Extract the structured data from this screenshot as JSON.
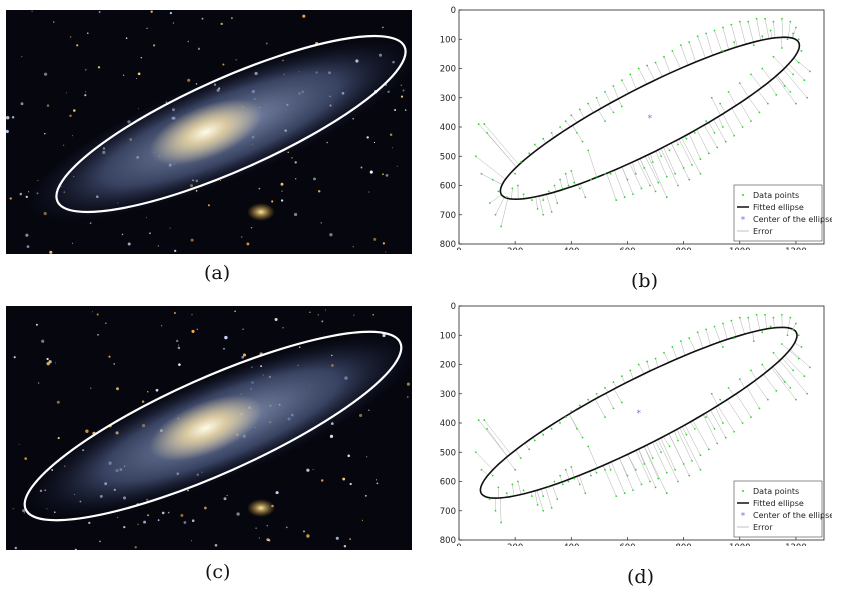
{
  "captions": {
    "a": "(a)",
    "b": "(b)",
    "c": "(c)",
    "d": "(d)"
  },
  "colors": {
    "points": "#2fd62f",
    "ellipse": "#111111",
    "center": "#7b6fe0",
    "error": "#b0b0b0",
    "overlay_ellipse": "#ffffff"
  },
  "chart_data": [
    {
      "panel": "b",
      "type": "scatter",
      "xlim": [
        0,
        1300
      ],
      "ylim": [
        800,
        0
      ],
      "xticks": [
        0,
        200,
        400,
        600,
        800,
        1000,
        1200
      ],
      "yticks": [
        0,
        100,
        200,
        300,
        400,
        500,
        600,
        700,
        800
      ],
      "grid": false,
      "legend": {
        "placement": "bottom-right",
        "entries": [
          "Data points",
          "Fitted ellipse",
          "Center of the ellipse",
          "Error"
        ]
      },
      "ellipse": {
        "cx": 680,
        "cy": 370,
        "a": 590,
        "b": 110,
        "angle_deg": -26
      },
      "center": [
        680,
        370
      ]
    },
    {
      "panel": "d",
      "type": "scatter",
      "xlim": [
        0,
        1300
      ],
      "ylim": [
        800,
        0
      ],
      "xticks": [
        0,
        200,
        400,
        600,
        800,
        1000,
        1200
      ],
      "yticks": [
        0,
        100,
        200,
        300,
        400,
        500,
        600,
        700,
        800
      ],
      "grid": false,
      "legend": {
        "placement": "bottom-right",
        "entries": [
          "Data points",
          "Fitted ellipse",
          "Center of the ellipse",
          "Error"
        ]
      },
      "ellipse": {
        "cx": 640,
        "cy": 365,
        "a": 625,
        "b": 112,
        "angle_deg": -26
      },
      "center": [
        640,
        365
      ]
    }
  ],
  "scatter_points": [
    [
      70,
      390
    ],
    [
      90,
      390
    ],
    [
      100,
      420
    ],
    [
      60,
      500
    ],
    [
      80,
      560
    ],
    [
      120,
      580
    ],
    [
      140,
      620
    ],
    [
      110,
      660
    ],
    [
      130,
      700
    ],
    [
      150,
      740
    ],
    [
      170,
      640
    ],
    [
      190,
      610
    ],
    [
      210,
      600
    ],
    [
      230,
      630
    ],
    [
      260,
      650
    ],
    [
      280,
      680
    ],
    [
      300,
      700
    ],
    [
      330,
      690
    ],
    [
      350,
      660
    ],
    [
      370,
      610
    ],
    [
      390,
      600
    ],
    [
      410,
      590
    ],
    [
      430,
      610
    ],
    [
      450,
      640
    ],
    [
      470,
      580
    ],
    [
      490,
      570
    ],
    [
      520,
      560
    ],
    [
      540,
      560
    ],
    [
      300,
      650
    ],
    [
      320,
      620
    ],
    [
      340,
      600
    ],
    [
      360,
      580
    ],
    [
      380,
      560
    ],
    [
      400,
      550
    ],
    [
      200,
      560
    ],
    [
      220,
      520
    ],
    [
      250,
      490
    ],
    [
      270,
      460
    ],
    [
      300,
      440
    ],
    [
      330,
      420
    ],
    [
      360,
      400
    ],
    [
      380,
      380
    ],
    [
      400,
      360
    ],
    [
      430,
      340
    ],
    [
      460,
      320
    ],
    [
      490,
      300
    ],
    [
      520,
      280
    ],
    [
      550,
      260
    ],
    [
      580,
      240
    ],
    [
      610,
      220
    ],
    [
      640,
      200
    ],
    [
      670,
      190
    ],
    [
      700,
      180
    ],
    [
      730,
      160
    ],
    [
      760,
      140
    ],
    [
      790,
      120
    ],
    [
      820,
      110
    ],
    [
      850,
      90
    ],
    [
      880,
      80
    ],
    [
      910,
      70
    ],
    [
      940,
      60
    ],
    [
      970,
      50
    ],
    [
      1000,
      40
    ],
    [
      1030,
      40
    ],
    [
      1060,
      30
    ],
    [
      1090,
      30
    ],
    [
      1120,
      40
    ],
    [
      1150,
      30
    ],
    [
      1180,
      40
    ],
    [
      1200,
      60
    ],
    [
      1210,
      100
    ],
    [
      1220,
      140
    ],
    [
      1210,
      180
    ],
    [
      1190,
      220
    ],
    [
      1160,
      260
    ],
    [
      1130,
      290
    ],
    [
      1100,
      320
    ],
    [
      1070,
      350
    ],
    [
      1040,
      380
    ],
    [
      1010,
      400
    ],
    [
      980,
      430
    ],
    [
      950,
      450
    ],
    [
      920,
      470
    ],
    [
      890,
      490
    ],
    [
      860,
      510
    ],
    [
      830,
      530
    ],
    [
      800,
      540
    ],
    [
      770,
      560
    ],
    [
      740,
      570
    ],
    [
      710,
      590
    ],
    [
      680,
      600
    ],
    [
      650,
      610
    ],
    [
      620,
      630
    ],
    [
      590,
      640
    ],
    [
      560,
      650
    ],
    [
      900,
      300
    ],
    [
      930,
      320
    ],
    [
      960,
      280
    ],
    [
      1000,
      250
    ],
    [
      1040,
      220
    ],
    [
      1080,
      200
    ],
    [
      1120,
      160
    ],
    [
      1150,
      130
    ],
    [
      1170,
      100
    ],
    [
      1190,
      80
    ],
    [
      1050,
      120
    ],
    [
      1080,
      90
    ],
    [
      1110,
      70
    ],
    [
      980,
      110
    ],
    [
      940,
      140
    ],
    [
      520,
      380
    ],
    [
      550,
      350
    ],
    [
      580,
      330
    ],
    [
      420,
      420
    ],
    [
      440,
      450
    ],
    [
      460,
      480
    ],
    [
      700,
      620
    ],
    [
      740,
      640
    ],
    [
      780,
      600
    ],
    [
      820,
      580
    ],
    [
      860,
      560
    ],
    [
      880,
      380
    ],
    [
      910,
      420
    ],
    [
      940,
      400
    ],
    [
      600,
      580
    ],
    [
      630,
      560
    ],
    [
      660,
      540
    ],
    [
      690,
      520
    ],
    [
      720,
      500
    ],
    [
      750,
      480
    ],
    [
      780,
      460
    ],
    [
      810,
      440
    ],
    [
      840,
      420
    ],
    [
      1230,
      240
    ],
    [
      1250,
      210
    ],
    [
      1240,
      300
    ],
    [
      1200,
      320
    ],
    [
      1180,
      280
    ]
  ]
}
